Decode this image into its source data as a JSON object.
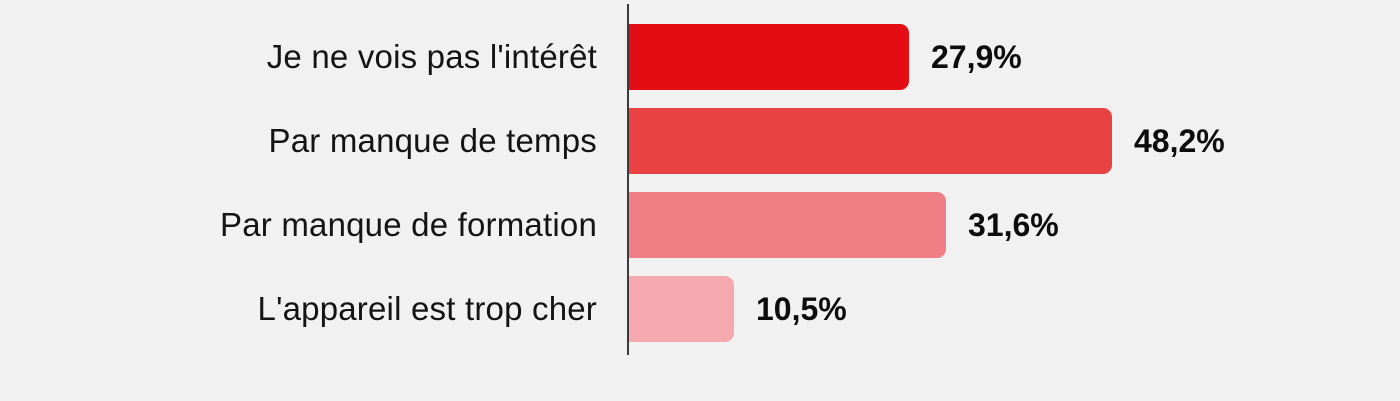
{
  "chart_data": {
    "type": "bar",
    "orientation": "horizontal",
    "title": "",
    "xlabel": "",
    "ylabel": "",
    "categories": [
      "Je ne vois pas l'intérêt",
      "Par manque de temps",
      "Par manque de formation",
      "L'appareil est trop cher"
    ],
    "values": [
      27.9,
      48.2,
      31.6,
      10.5
    ],
    "value_labels": [
      "27,9%",
      "48,2%",
      "31,6%",
      "10,5%"
    ],
    "bar_colors": [
      "#e30d13",
      "#e84242",
      "#f08086",
      "#f5a9ae"
    ],
    "xlim": [
      0,
      50
    ],
    "grid": false,
    "legend": false,
    "background_color": "#f1f1f1",
    "axis_line_color": "#3b3b3b",
    "label_color": "#141414",
    "value_color": "#0d0d0d"
  }
}
